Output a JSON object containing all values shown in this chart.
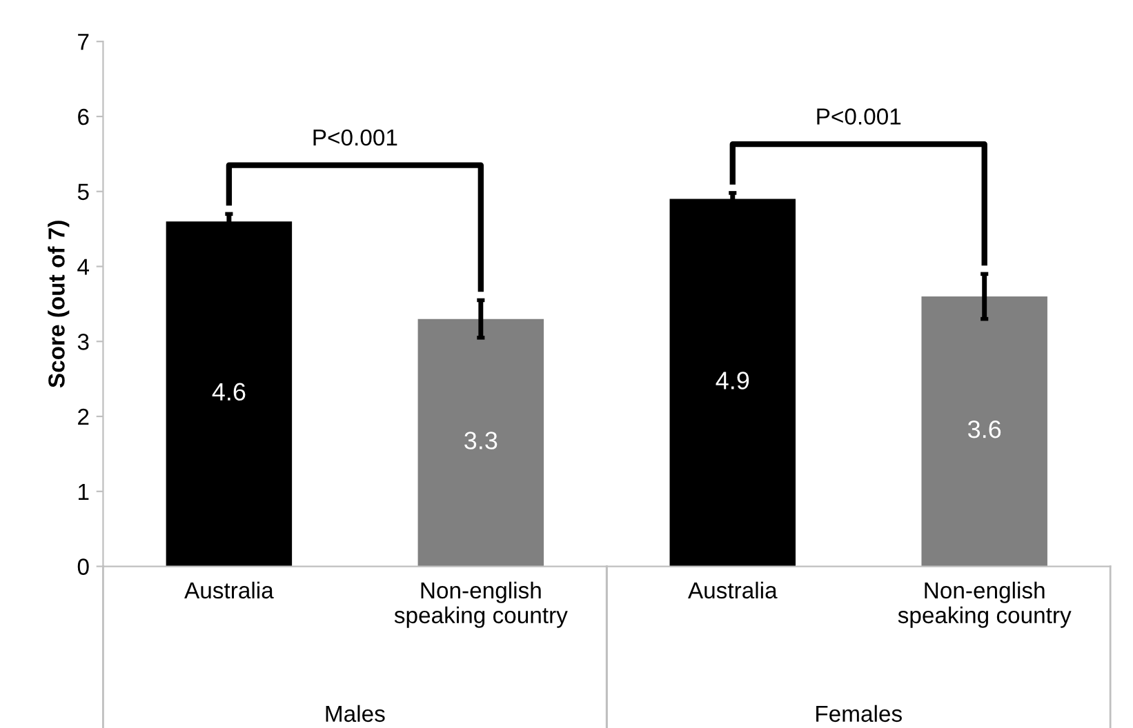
{
  "chart_data": {
    "type": "bar",
    "ylabel": "Score (out of 7)",
    "categories": [
      "Australia",
      "Non-english\nspeaking country",
      "Australia",
      "Non-english\nspeaking country"
    ],
    "values": [
      4.6,
      3.3,
      4.9,
      3.6
    ],
    "colors": [
      "#000000",
      "#808080",
      "#000000",
      "#808080"
    ],
    "errors": [
      0.1,
      0.25,
      0.08,
      0.3
    ],
    "data_labels": true,
    "ylim": [
      0,
      7
    ],
    "yticks": [
      0,
      1,
      2,
      3,
      4,
      5,
      6,
      7
    ],
    "grid": false,
    "annotations": [
      "P<0.001",
      "P<0.001",
      "Males",
      "Females"
    ]
  }
}
